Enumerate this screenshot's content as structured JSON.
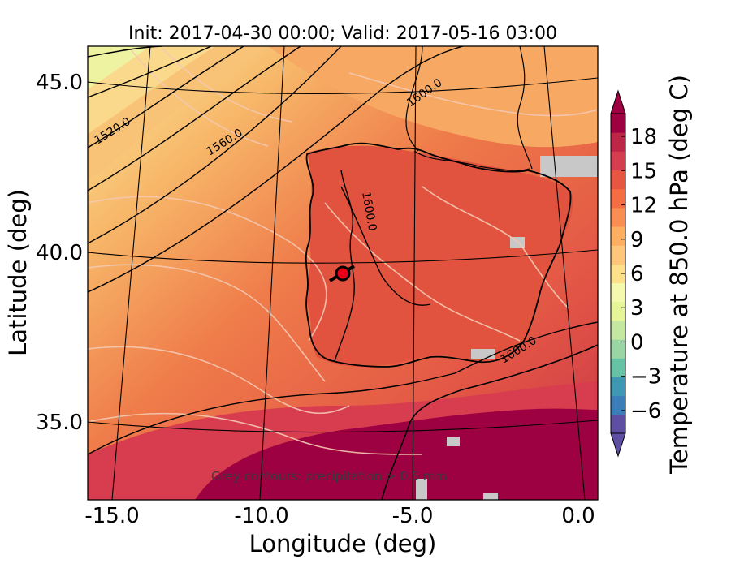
{
  "title": "Init: 2017-04-30 00:00; Valid: 2017-05-16 03:00",
  "x_axis": {
    "label": "Longitude (deg)",
    "ticks": [
      "-15.0",
      "-10.0",
      "-5.0",
      "0.0"
    ]
  },
  "y_axis": {
    "label": "Latitude (deg)",
    "ticks": [
      "45.0",
      "40.0",
      "35.0"
    ]
  },
  "colorbar": {
    "label": "Temperature at 850.0 hPa (deg C)",
    "ticks": [
      "18",
      "15",
      "12",
      "9",
      "6",
      "3",
      "0",
      "−3",
      "−6"
    ],
    "range": [
      -8,
      20
    ],
    "colors": [
      "#5e4fa2",
      "#3a7db9",
      "#3f98b3",
      "#66c2a5",
      "#9ad5a4",
      "#c5e8a0",
      "#e6f598",
      "#f4f9ad",
      "#fee08b",
      "#fec67a",
      "#fdae61",
      "#f98e52",
      "#f46d43",
      "#e65641",
      "#d53e4f",
      "#be2648",
      "#9e0142"
    ]
  },
  "contours": {
    "geopotential_labels": [
      "1520.0",
      "1560.0",
      "1600.0",
      "1600.0",
      "1600.0"
    ],
    "note": "Grey contours: precipitation > 0.5 mm"
  },
  "marker": {
    "lon": -7.6,
    "lat": 39.3
  },
  "colors": {
    "hot": "#9e0142",
    "warm": "#e15a45",
    "orange": "#f7a35c",
    "cool": "#fee9a1"
  }
}
